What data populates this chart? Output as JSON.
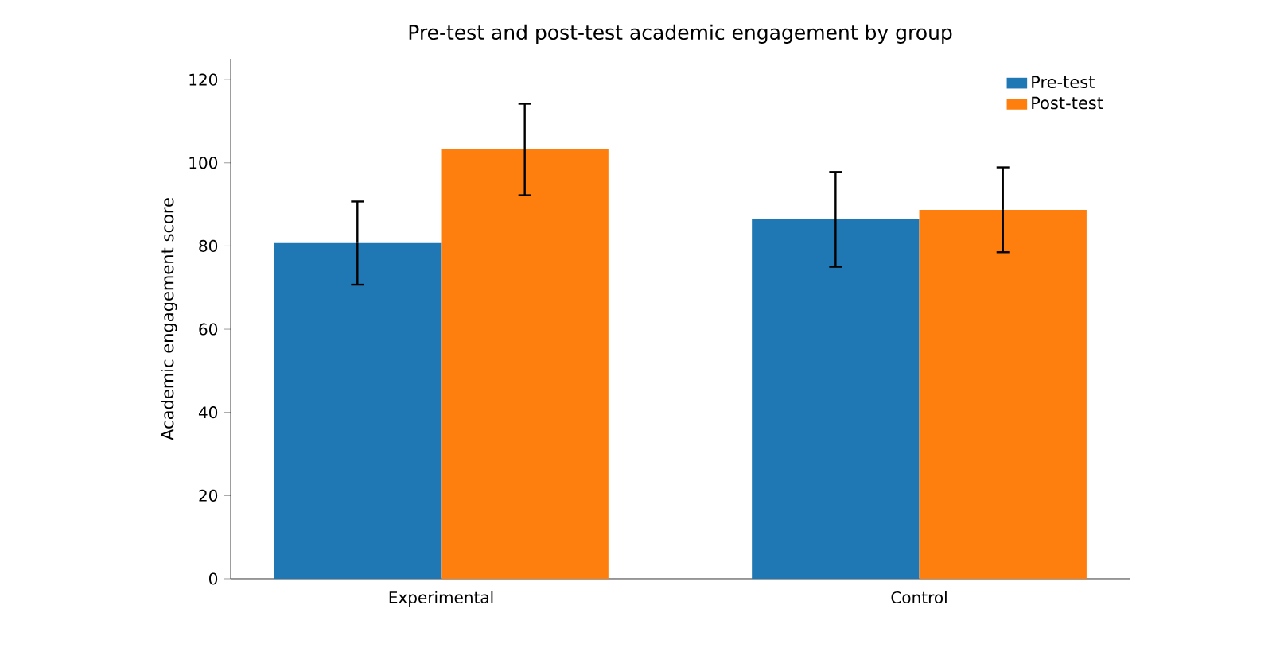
{
  "chart_data": {
    "type": "bar",
    "title": "Pre-test and post-test academic engagement by group",
    "ylabel": "Academic engagement score",
    "categories": [
      "Experimental",
      "Control"
    ],
    "series": [
      {
        "name": "Pre-test",
        "color": "#1f77b4",
        "values": [
          80.7,
          86.4
        ],
        "errors": [
          10,
          11.4
        ]
      },
      {
        "name": "Post-test",
        "color": "#ff7f0e",
        "values": [
          103.2,
          88.7
        ],
        "errors": [
          11,
          10.2
        ]
      }
    ],
    "ylim": [
      0,
      125
    ],
    "yticks": [
      0,
      20,
      40,
      60,
      80,
      100,
      120
    ],
    "legend": "top right",
    "grid": false
  }
}
